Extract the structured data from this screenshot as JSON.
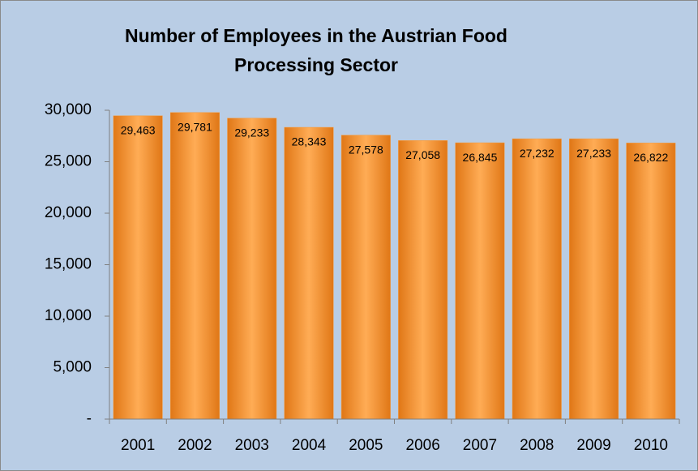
{
  "chart_data": {
    "type": "bar",
    "title": "Number of Employees in the Austrian Food Processing Sector",
    "categories": [
      "2001",
      "2002",
      "2003",
      "2004",
      "2005",
      "2006",
      "2007",
      "2008",
      "2009",
      "2010"
    ],
    "values": [
      29463,
      29781,
      29233,
      28343,
      27578,
      27058,
      26845,
      27232,
      27233,
      26822
    ],
    "value_labels": [
      "29,463",
      "29,781",
      "29,233",
      "28,343",
      "27,578",
      "27,058",
      "26,845",
      "27,232",
      "27,233",
      "26,822"
    ],
    "color": "#f59a3c",
    "ylim": [
      0,
      30000
    ],
    "yticks": [
      {
        "value": 0,
        "label": "-"
      },
      {
        "value": 5000,
        "label": "5,000"
      },
      {
        "value": 10000,
        "label": "10,000"
      },
      {
        "value": 15000,
        "label": "15,000"
      },
      {
        "value": 20000,
        "label": "20,000"
      },
      {
        "value": 25000,
        "label": "25,000"
      },
      {
        "value": 30000,
        "label": "30,000"
      }
    ],
    "grid": false
  }
}
